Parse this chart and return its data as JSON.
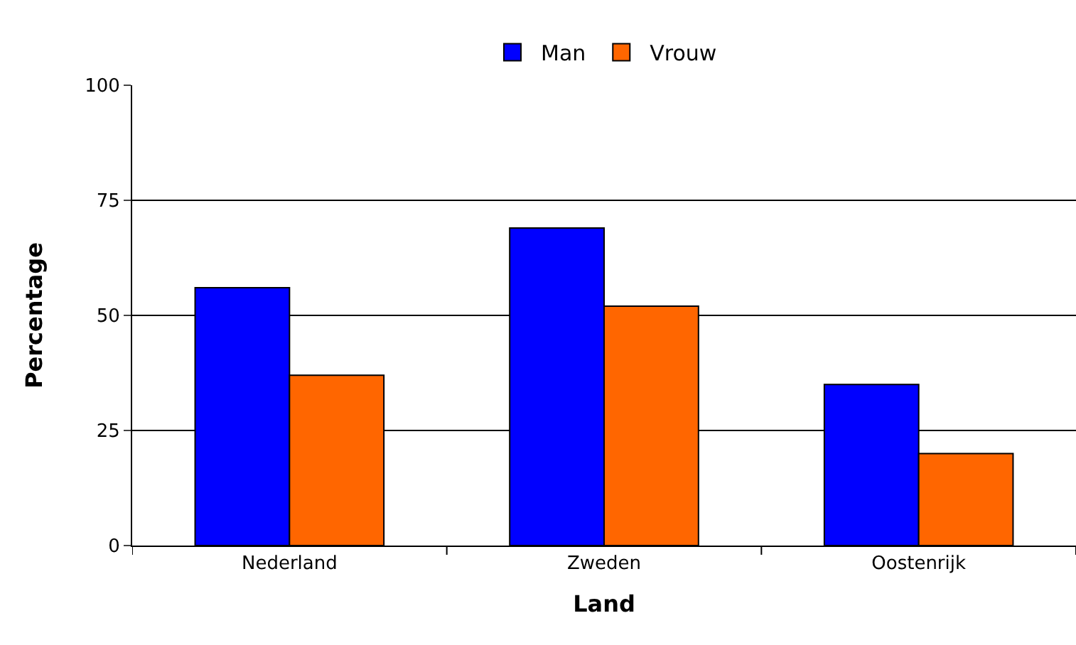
{
  "chart_data": {
    "type": "bar",
    "xlabel": "Land",
    "ylabel": "Percentage",
    "categories": [
      "Nederland",
      "Zweden",
      "Oostenrijk"
    ],
    "series": [
      {
        "name": "Man",
        "color": "#0000ff",
        "values": [
          56,
          69,
          35
        ]
      },
      {
        "name": "Vrouw",
        "color": "#ff6600",
        "values": [
          37,
          52,
          20
        ]
      }
    ],
    "ylim": [
      0,
      100
    ],
    "yticks": [
      0,
      25,
      50,
      75,
      100
    ],
    "grid": "y",
    "legend": "top"
  }
}
